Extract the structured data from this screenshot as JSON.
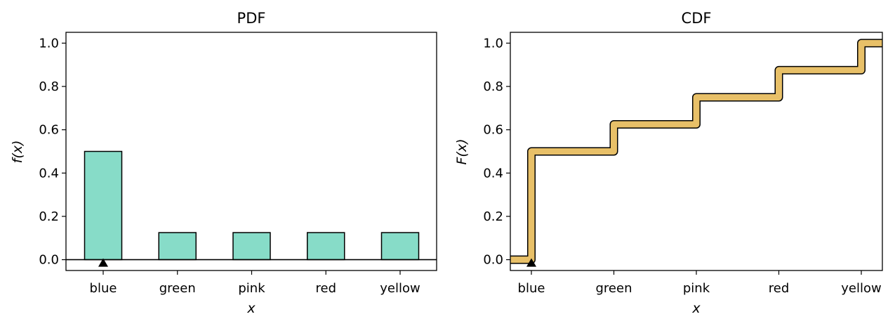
{
  "chart_data": [
    {
      "type": "bar",
      "title": "PDF",
      "xlabel": "x",
      "ylabel": "f(x)",
      "categories": [
        "blue",
        "green",
        "pink",
        "red",
        "yellow"
      ],
      "values": [
        0.5,
        0.125,
        0.125,
        0.125,
        0.125
      ],
      "ylim": [
        -0.05,
        1.05
      ],
      "yticks": [
        0.0,
        0.2,
        0.4,
        0.6,
        0.8,
        1.0
      ],
      "ytick_labels": [
        "0.0",
        "0.2",
        "0.4",
        "0.6",
        "0.8",
        "1.0"
      ],
      "bar_color": "#87DCC8",
      "edge_color": "#000000",
      "baseline": 0.0,
      "marker": {
        "category": "blue",
        "value": 0.0,
        "shape": "triangle-up"
      }
    },
    {
      "type": "step",
      "title": "CDF",
      "xlabel": "x",
      "ylabel": "F(x)",
      "categories": [
        "blue",
        "green",
        "pink",
        "red",
        "yellow"
      ],
      "values": [
        0.5,
        0.625,
        0.75,
        0.875,
        1.0
      ],
      "start_value": 0.0,
      "ylim": [
        -0.05,
        1.05
      ],
      "yticks": [
        0.0,
        0.2,
        0.4,
        0.6,
        0.8,
        1.0
      ],
      "ytick_labels": [
        "0.0",
        "0.2",
        "0.4",
        "0.6",
        "0.8",
        "1.0"
      ],
      "line_color": "#E8C068",
      "edge_color": "#000000",
      "marker": {
        "category": "blue",
        "value": 0.0,
        "shape": "triangle-up"
      }
    }
  ]
}
